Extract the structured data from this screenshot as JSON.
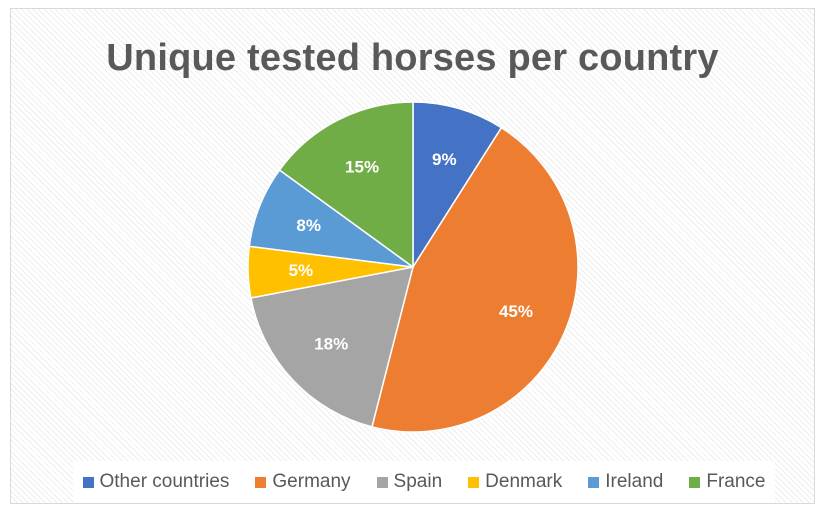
{
  "chart_data": {
    "type": "pie",
    "title": "Unique tested horses per country",
    "categories": [
      "Other countries",
      "Germany",
      "Spain",
      "Denmark",
      "Ireland",
      "France"
    ],
    "values": [
      9,
      45,
      18,
      5,
      8,
      15
    ],
    "labels": [
      "9%",
      "45%",
      "18%",
      "5%",
      "8%",
      "15%"
    ],
    "colors": [
      "#4472c4",
      "#ed7d31",
      "#a5a5a5",
      "#ffc000",
      "#5b9bd5",
      "#70ad47"
    ],
    "start_angle_deg": 0,
    "direction": "clockwise",
    "legend_position": "bottom"
  }
}
